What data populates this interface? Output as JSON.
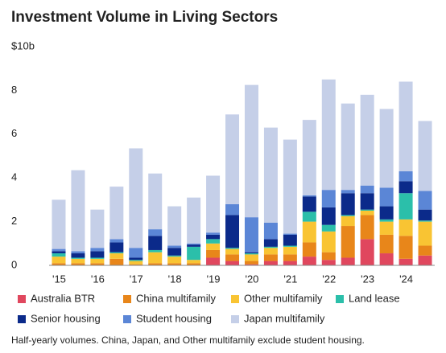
{
  "chart_data": {
    "type": "stacked_bar",
    "title": "Investment Volume in Living Sectors",
    "note": "Half-yearly volumes. China, Japan, and Other multifamily exclude student housing.",
    "categories": [
      "'15",
      null,
      "'16",
      null,
      "'17",
      null,
      "'18",
      null,
      "'19",
      null,
      "'20",
      null,
      "'21",
      null,
      "'22",
      null,
      "'23",
      null,
      "'24",
      null
    ],
    "ylim": [
      0,
      10
    ],
    "yticks": [
      0,
      2,
      4,
      6,
      8,
      {
        "value": 10,
        "label": "$10b"
      }
    ],
    "grid": false,
    "series": [
      {
        "name": "Australia BTR",
        "color": "#e0475e",
        "values": [
          0,
          0,
          0,
          0,
          0,
          0,
          0,
          0,
          0.35,
          0.2,
          0.05,
          0.2,
          0.2,
          0.4,
          0.25,
          0.35,
          1.2,
          0.55,
          0.3,
          0.45
        ]
      },
      {
        "name": "China multifamily",
        "color": "#e8861a",
        "values": [
          0.1,
          0.1,
          0.1,
          0.3,
          0.05,
          0.1,
          0.1,
          0.1,
          0.35,
          0.3,
          0.15,
          0.3,
          0.3,
          0.65,
          0.35,
          1.45,
          1.1,
          0.85,
          1.05,
          0.45
        ]
      },
      {
        "name": "Other multifamily",
        "color": "#f9c433",
        "values": [
          0.3,
          0.2,
          0.2,
          0.25,
          0.15,
          0.5,
          0.3,
          0.15,
          0.3,
          0.25,
          0.3,
          0.3,
          0.35,
          0.95,
          0.95,
          0.45,
          0.2,
          0.6,
          0.75,
          1.1
        ]
      },
      {
        "name": "Land lease",
        "color": "#2bbfaa",
        "values": [
          0.15,
          0.05,
          0.05,
          0.05,
          0.05,
          0.1,
          0.05,
          0.6,
          0.2,
          0.05,
          0.05,
          0.05,
          0.05,
          0.45,
          0.3,
          0.05,
          0.05,
          0.1,
          1.2,
          0.05
        ]
      },
      {
        "name": "Senior housing",
        "color": "#0b2a8a",
        "values": [
          0.1,
          0.2,
          0.3,
          0.45,
          0.1,
          0.65,
          0.35,
          0.1,
          0.2,
          1.5,
          0.05,
          0.35,
          0.5,
          0.7,
          0.8,
          1.0,
          0.75,
          0.6,
          0.55,
          0.5
        ]
      },
      {
        "name": "Student housing",
        "color": "#5b86d6",
        "values": [
          0.1,
          0.1,
          0.15,
          0.15,
          0.45,
          0.3,
          0.1,
          0.05,
          0.1,
          0.5,
          1.6,
          0.75,
          0.05,
          0.05,
          0.8,
          0.15,
          0.35,
          0.85,
          0.45,
          0.85
        ]
      },
      {
        "name": "Japan multifamily",
        "color": "#c5cfe8",
        "values": [
          2.25,
          3.7,
          1.75,
          2.4,
          4.55,
          2.55,
          1.8,
          2.1,
          2.6,
          4.1,
          6.05,
          4.35,
          4.3,
          3.45,
          5.05,
          3.95,
          4.15,
          3.6,
          4.1,
          3.2
        ]
      }
    ]
  }
}
